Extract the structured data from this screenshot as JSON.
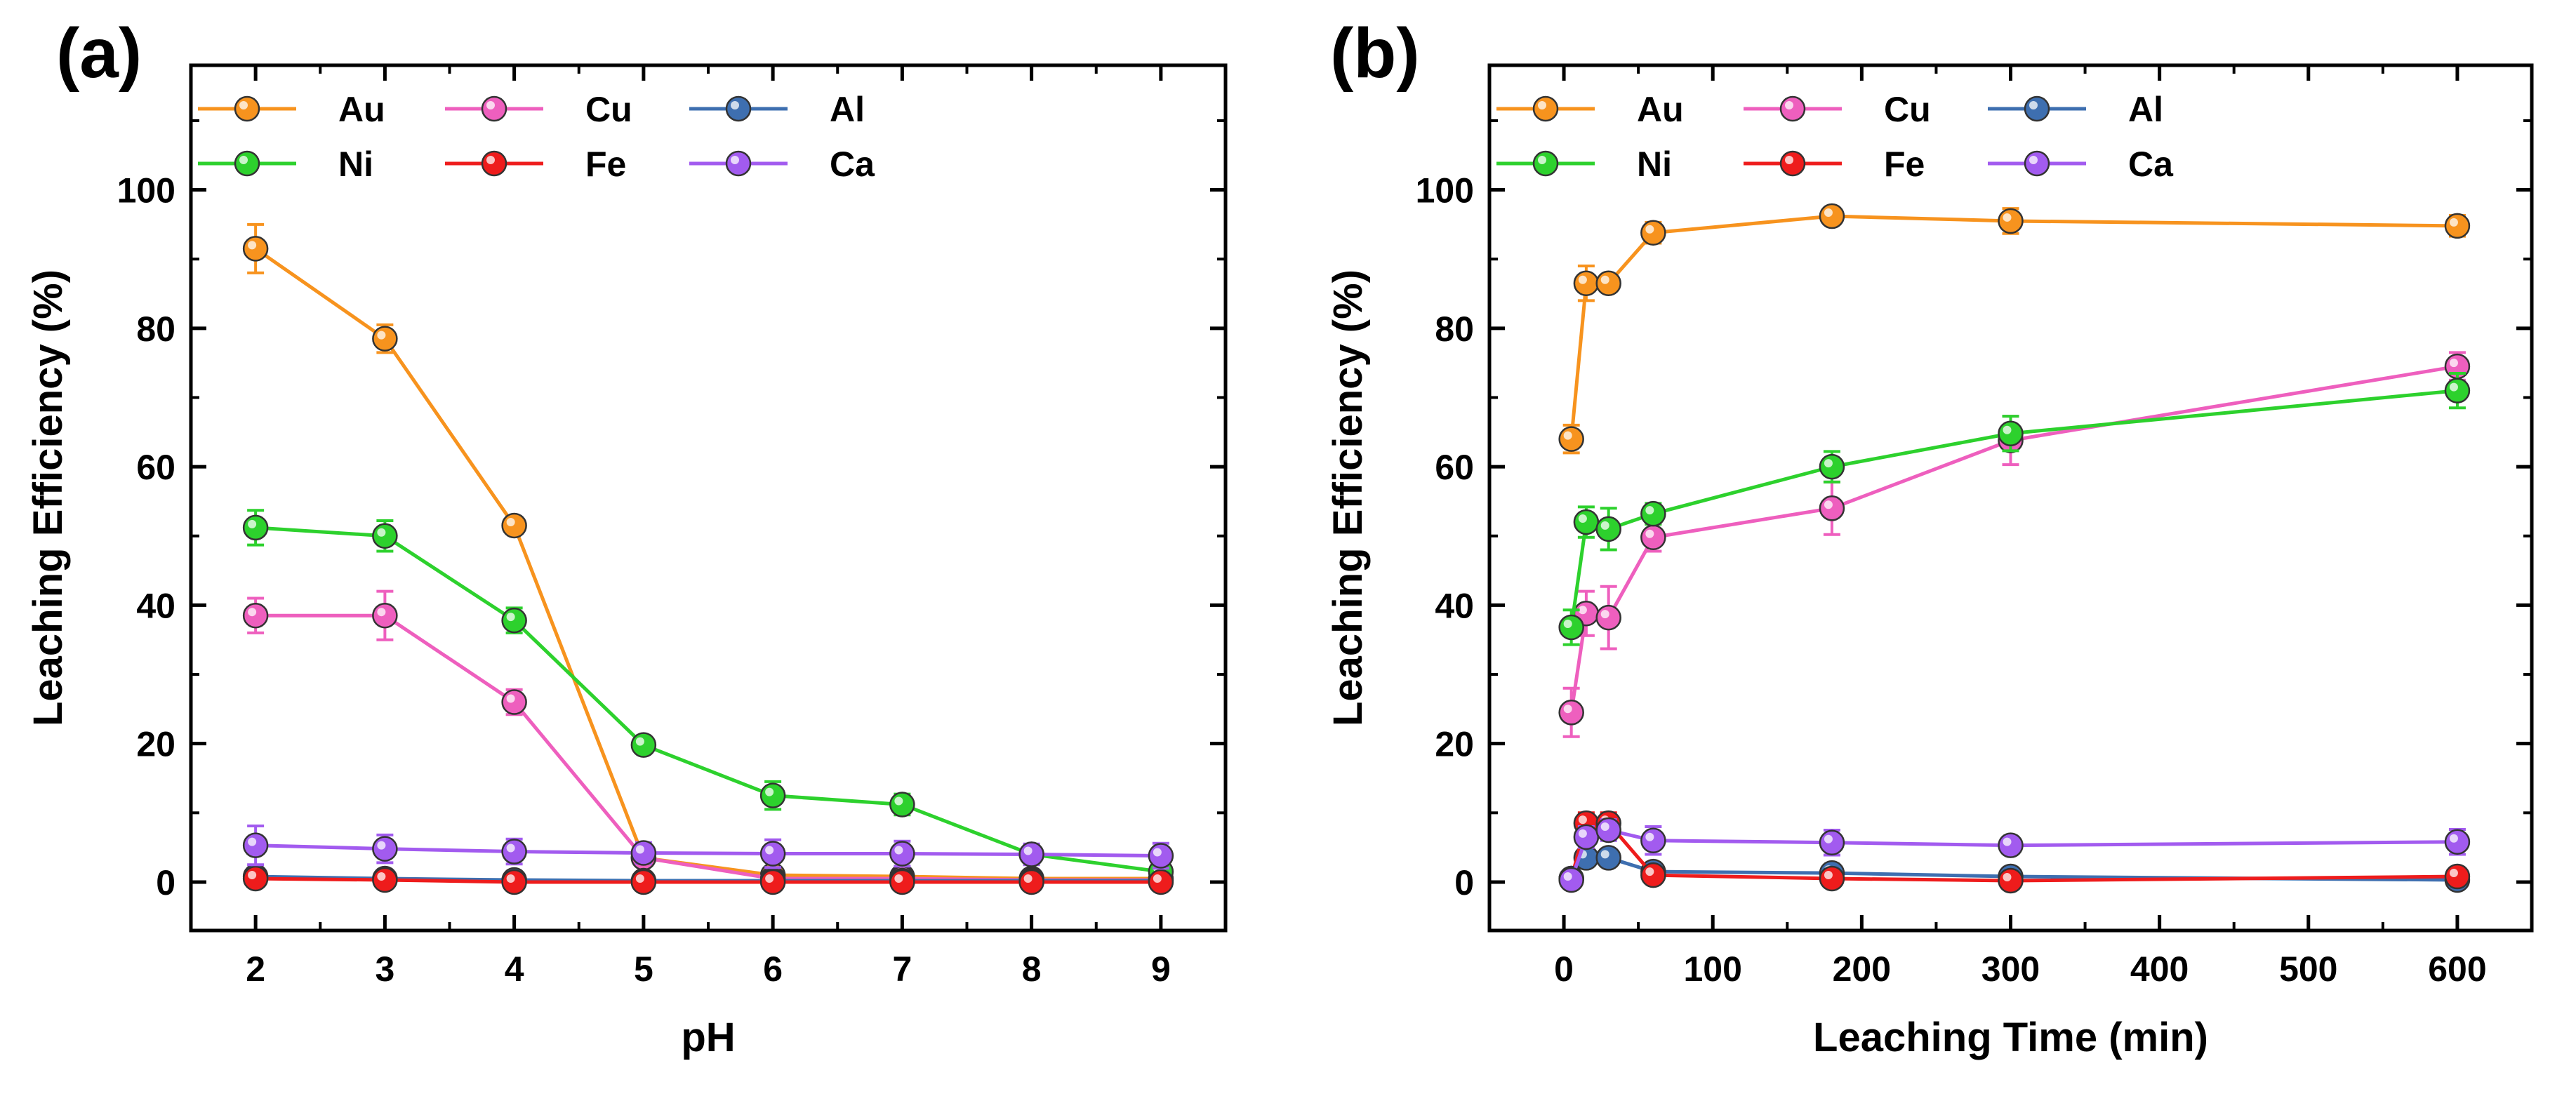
{
  "colors": {
    "Au": "#F7931E",
    "Cu": "#EE5FBE",
    "Al": "#3E6FB0",
    "Ni": "#2DD12D",
    "Fe": "#EE1C1C",
    "Ca": "#A25BEF"
  },
  "chart_data": [
    {
      "type": "line",
      "panel_label": "(a)",
      "xlabel": "pH",
      "ylabel": "Leaching Efficiency (%)",
      "xlim": [
        1.5,
        9.5
      ],
      "ylim": [
        -7,
        118
      ],
      "x_ticks": [
        2,
        3,
        4,
        5,
        6,
        7,
        8,
        9
      ],
      "y_ticks": [
        0,
        20,
        40,
        60,
        80,
        100
      ],
      "x_minor_ticks": [
        2.5,
        3.5,
        4.5,
        5.5,
        6.5,
        7.5,
        8.5
      ],
      "y_minor_ticks": [
        10,
        30,
        50,
        70,
        90,
        110
      ],
      "x": [
        2,
        3,
        4,
        5,
        6,
        7,
        8,
        9
      ],
      "legend": {
        "placement": "top-left",
        "columns": 3,
        "entries": [
          "Au",
          "Cu",
          "Al",
          "Ni",
          "Fe",
          "Ca"
        ]
      },
      "series": [
        {
          "name": "Au",
          "values": [
            91.5,
            78.5,
            51.5,
            3.5,
            1,
            0.8,
            0.5,
            0.5
          ],
          "errors": [
            3.5,
            2,
            1,
            0.8,
            0.5,
            0.5,
            0.5,
            0.5
          ]
        },
        {
          "name": "Cu",
          "values": [
            38.5,
            38.5,
            26,
            3.5,
            0.5,
            0.5,
            0.3,
            0.3
          ],
          "errors": [
            2.5,
            3.5,
            1.8,
            0.8,
            0.5,
            0.5,
            0.5,
            0.5
          ]
        },
        {
          "name": "Al",
          "values": [
            0.8,
            0.5,
            0.3,
            0.2,
            0.2,
            0.2,
            0.2,
            0.2
          ],
          "errors": [
            0.5,
            0.5,
            0.5,
            0.5,
            0.5,
            0.5,
            0.5,
            0.5
          ]
        },
        {
          "name": "Ni",
          "values": [
            51.2,
            50,
            37.8,
            19.8,
            12.5,
            11.2,
            4,
            1.5
          ],
          "errors": [
            2.5,
            2.2,
            1.8,
            1.2,
            2,
            1.5,
            1,
            0.8
          ]
        },
        {
          "name": "Fe",
          "values": [
            0.5,
            0.3,
            0,
            0,
            0,
            0,
            0,
            0
          ],
          "errors": [
            0.5,
            0.5,
            0.5,
            0.5,
            0.5,
            0.5,
            0.5,
            0.5
          ]
        },
        {
          "name": "Ca",
          "values": [
            5.3,
            4.8,
            4.4,
            4.2,
            4.1,
            4.1,
            4,
            3.8
          ],
          "errors": [
            2.8,
            2,
            1.8,
            1.5,
            2,
            1.8,
            1.5,
            1.8
          ]
        }
      ]
    },
    {
      "type": "line",
      "panel_label": "(b)",
      "xlabel": "Leaching Time (min)",
      "ylabel": "Leaching Efficiency (%)",
      "xlim": [
        -50,
        650
      ],
      "ylim": [
        -7,
        118
      ],
      "x_ticks": [
        0,
        100,
        200,
        300,
        400,
        500,
        600
      ],
      "y_ticks": [
        0,
        20,
        40,
        60,
        80,
        100
      ],
      "x_minor_ticks": [
        50,
        150,
        250,
        350,
        450,
        550
      ],
      "y_minor_ticks": [
        10,
        30,
        50,
        70,
        90,
        110
      ],
      "x": [
        5,
        15,
        30,
        60,
        180,
        300,
        600
      ],
      "legend": {
        "placement": "top-left",
        "columns": 3,
        "entries": [
          "Au",
          "Cu",
          "Al",
          "Ni",
          "Fe",
          "Ca"
        ]
      },
      "series": [
        {
          "name": "Au",
          "values": [
            64,
            86.5,
            86.5,
            93.8,
            96.2,
            95.5,
            94.8
          ],
          "errors": [
            2,
            2.5,
            1.2,
            1.5,
            1,
            1.8,
            1.5
          ]
        },
        {
          "name": "Cu",
          "values": [
            24.5,
            38.8,
            38.2,
            49.8,
            54,
            63.8,
            74.5
          ],
          "errors": [
            3.5,
            3.2,
            4.5,
            2,
            3.8,
            3.5,
            2
          ]
        },
        {
          "name": "Al",
          "values": [
            0.5,
            3.5,
            3.5,
            1.5,
            1.3,
            0.8,
            0.3
          ],
          "errors": [
            0.5,
            1,
            1,
            0.5,
            0.5,
            0.5,
            0.5
          ]
        },
        {
          "name": "Ni",
          "values": [
            36.8,
            52,
            51,
            53.2,
            60,
            64.8,
            71
          ],
          "errors": [
            2.5,
            2.2,
            3,
            1.5,
            2.2,
            2.5,
            2.5
          ]
        },
        {
          "name": "Fe",
          "values": [
            0.5,
            8.5,
            8.5,
            1,
            0.5,
            0.2,
            0.8
          ],
          "errors": [
            0.5,
            1.5,
            1.5,
            0.5,
            0.5,
            0.5,
            0.5
          ]
        },
        {
          "name": "Ca",
          "values": [
            0.3,
            6.5,
            7.5,
            6,
            5.7,
            5.3,
            5.8
          ],
          "errors": [
            0.5,
            1.5,
            1.5,
            2,
            1.8,
            1.2,
            1.8
          ]
        }
      ]
    }
  ]
}
